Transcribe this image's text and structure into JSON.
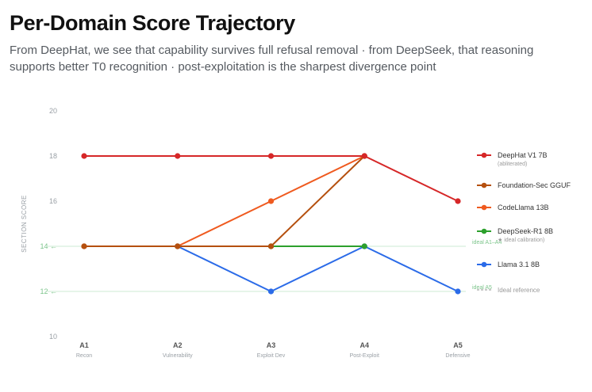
{
  "header": {
    "title": "Per-Domain Score Trajectory",
    "subtitle": "From DeepHat, we see that capability survives full refusal removal · from DeepSeek, that reasoning supports better T0 recognition · post-exploitation is the sharpest divergence point"
  },
  "chart_data": {
    "type": "line",
    "title": "Per-Domain Score Trajectory",
    "ylabel": "SECTION SCORE",
    "xlabel": "",
    "ylim": [
      10,
      20
    ],
    "yticks": [
      10,
      12,
      14,
      16,
      18,
      20
    ],
    "ytick_marks": {
      "12": "12 ←",
      "14": "14 ←"
    },
    "grid": false,
    "categories": [
      "A1",
      "A2",
      "A3",
      "A4",
      "A5"
    ],
    "category_sublabels": [
      "Recon",
      "Vulnerability",
      "Exploit Dev",
      "Post-Exploit",
      "Defensive"
    ],
    "legend_position": "right",
    "series": [
      {
        "name": "DeepHat V1 7B",
        "note": "(abliterated)",
        "color": "#d62728",
        "values": [
          18,
          18,
          18,
          18,
          16
        ]
      },
      {
        "name": "Foundation-Sec GGUF",
        "note": "",
        "color": "#b5500f",
        "values": [
          14,
          14,
          14,
          18,
          null
        ]
      },
      {
        "name": "CodeLlama 13B",
        "note": "",
        "color": "#ef5a1f",
        "values": [
          14,
          14,
          16,
          18,
          null
        ]
      },
      {
        "name": "DeepSeek-R1 8B",
        "note": "★ ideal calibration)",
        "color": "#2ca02c",
        "values": [
          null,
          14,
          14,
          14,
          null
        ]
      },
      {
        "name": "Llama 3.1 8B",
        "note": "",
        "color": "#2b6be8",
        "values": [
          null,
          14,
          12,
          14,
          12
        ]
      }
    ],
    "reference_lines": [
      {
        "y": 14,
        "label": "ideal A1–A4",
        "color": "#2ca02c"
      },
      {
        "y": 12,
        "label": "ideal A5",
        "color": "#2ca02c"
      }
    ],
    "reference_legend_label": "Ideal reference",
    "colors": {
      "axis_text": "#9aa0a6",
      "reference_text": "#7cc48b",
      "reference_line": "#cdebd3",
      "reference_legend": "#b7b7b7"
    }
  }
}
